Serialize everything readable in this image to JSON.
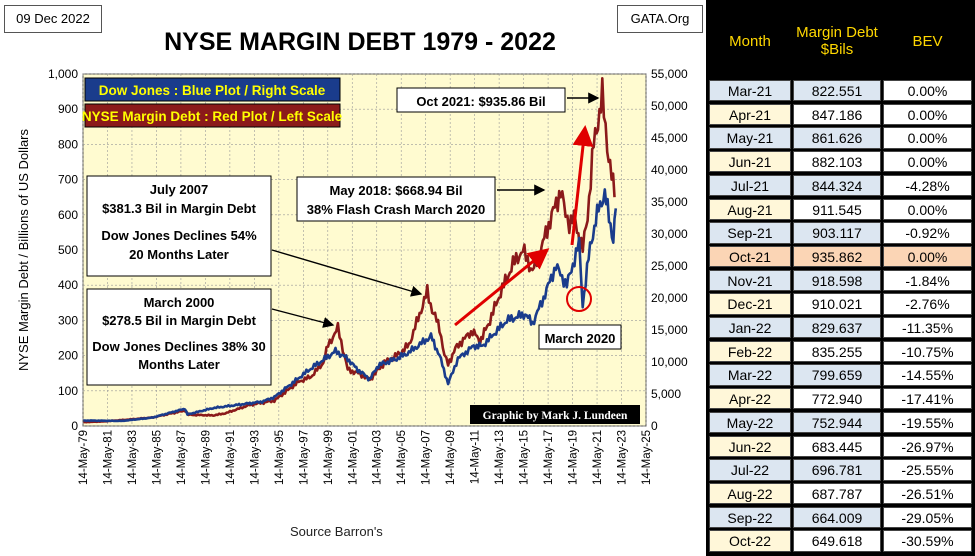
{
  "header": {
    "date": "09 Dec 2022",
    "source_tag": "GATA.Org",
    "footer": "Source Barron's"
  },
  "chart_data": {
    "type": "line",
    "title": "NYSE MARGIN DEBT 1979 - 2022",
    "ylabel": "NYSE Margin Debt  /  Billions of US Dollars",
    "xlabel": "Source Barron's",
    "ylim": [
      0,
      1000
    ],
    "y2lim": [
      0,
      55000
    ],
    "yticks": [
      "0",
      "100",
      "200",
      "300",
      "400",
      "500",
      "600",
      "700",
      "800",
      "900",
      "1,000"
    ],
    "y2ticks": [
      "0",
      "5,000",
      "10,000",
      "15,000",
      "20,000",
      "25,000",
      "30,000",
      "35,000",
      "40,000",
      "45,000",
      "50,000",
      "55,000"
    ],
    "xticks": [
      "14-May-79",
      "14-May-81",
      "14-May-83",
      "14-May-85",
      "14-May-87",
      "14-May-89",
      "14-May-91",
      "14-May-93",
      "14-May-95",
      "14-May-97",
      "14-May-99",
      "14-May-01",
      "14-May-03",
      "14-May-05",
      "14-May-07",
      "14-May-09",
      "14-May-11",
      "14-May-13",
      "14-May-15",
      "14-May-17",
      "14-May-19",
      "14-May-21",
      "14-May-23",
      "14-May-25"
    ],
    "legend": [
      {
        "label": "Dow Jones : Blue Plot / Right Scale",
        "color": "#1a3c8c",
        "text_color": "#ffff00"
      },
      {
        "label": "NYSE Margin Debt : Red Plot / Left Scale",
        "color": "#8b1a1a",
        "text_color": "#ffff00"
      }
    ],
    "series": [
      {
        "name": "NYSE Margin Debt",
        "axis": "left",
        "color": "#8b1a1a",
        "points": [
          [
            1979.4,
            11
          ],
          [
            1981,
            13
          ],
          [
            1983,
            18
          ],
          [
            1985,
            24
          ],
          [
            1987.7,
            44
          ],
          [
            1988,
            32
          ],
          [
            1990,
            30
          ],
          [
            1991,
            36
          ],
          [
            1993,
            60
          ],
          [
            1995,
            72
          ],
          [
            1997,
            126
          ],
          [
            1998,
            140
          ],
          [
            1999,
            180
          ],
          [
            1999.4,
            230
          ],
          [
            2000.2,
            278
          ],
          [
            2000.6,
            220
          ],
          [
            2001,
            160
          ],
          [
            2002,
            148
          ],
          [
            2002.8,
            132
          ],
          [
            2003,
            140
          ],
          [
            2004,
            180
          ],
          [
            2005,
            200
          ],
          [
            2006,
            230
          ],
          [
            2006.5,
            280
          ],
          [
            2007.5,
            381
          ],
          [
            2007.9,
            330
          ],
          [
            2008.5,
            280
          ],
          [
            2008.9,
            200
          ],
          [
            2009.2,
            175
          ],
          [
            2009.8,
            220
          ],
          [
            2010.3,
            240
          ],
          [
            2011.2,
            270
          ],
          [
            2011.8,
            240
          ],
          [
            2012.5,
            290
          ],
          [
            2013.5,
            380
          ],
          [
            2014.5,
            460
          ],
          [
            2015.3,
            500
          ],
          [
            2016.1,
            440
          ],
          [
            2016.7,
            490
          ],
          [
            2017.3,
            560
          ],
          [
            2018.4,
            669
          ],
          [
            2018.8,
            600
          ],
          [
            2019.1,
            580
          ],
          [
            2019.5,
            590
          ],
          [
            2020.2,
            500
          ],
          [
            2020.6,
            600
          ],
          [
            2021.1,
            800
          ],
          [
            2021.8,
            936
          ],
          [
            2022.2,
            800
          ],
          [
            2022.8,
            650
          ]
        ]
      },
      {
        "name": "Dow Jones",
        "axis": "right",
        "color": "#1a3c8c",
        "points": [
          [
            1979.4,
            850
          ],
          [
            1982.6,
            800
          ],
          [
            1985,
            1300
          ],
          [
            1987.7,
            2700
          ],
          [
            1987.9,
            1800
          ],
          [
            1990,
            2800
          ],
          [
            1992,
            3300
          ],
          [
            1994,
            3800
          ],
          [
            1995,
            4500
          ],
          [
            1996,
            6000
          ],
          [
            1998,
            9000
          ],
          [
            1999.5,
            11000
          ],
          [
            2000,
            11700
          ],
          [
            2001,
            10500
          ],
          [
            2001.7,
            9000
          ],
          [
            2002.8,
            7300
          ],
          [
            2003.5,
            9500
          ],
          [
            2005,
            10500
          ],
          [
            2006,
            11500
          ],
          [
            2007.8,
            14000
          ],
          [
            2008.5,
            11000
          ],
          [
            2009.2,
            6600
          ],
          [
            2010,
            10500
          ],
          [
            2011.3,
            12500
          ],
          [
            2012,
            12500
          ],
          [
            2013,
            14500
          ],
          [
            2014,
            16500
          ],
          [
            2015.5,
            17500
          ],
          [
            2016.1,
            16000
          ],
          [
            2017,
            20000
          ],
          [
            2018,
            25000
          ],
          [
            2018.9,
            22000
          ],
          [
            2019.9,
            28500
          ],
          [
            2020.2,
            19000
          ],
          [
            2020.8,
            28000
          ],
          [
            2021.5,
            34000
          ],
          [
            2022,
            36300
          ],
          [
            2022.7,
            29000
          ],
          [
            2022.9,
            34000
          ]
        ]
      }
    ],
    "annotations": [
      {
        "text": "Oct 2021: $935.86 Bil",
        "lines": [
          "Oct 2021: $935.86 Bil"
        ]
      },
      {
        "text": "May 2018: $668.94 Bil 38% Flash Crash March 2020",
        "lines": [
          "May 2018: $668.94 Bil",
          "38% Flash Crash March 2020"
        ]
      },
      {
        "text": "July 2007 $381.3 Bil in Margin Debt Dow Jones Declines 54% 20 Months Later",
        "lines": [
          "July 2007",
          "$381.3 Bil in Margin Debt",
          "",
          "Dow Jones Declines 54%",
          "20 Months Later"
        ]
      },
      {
        "text": "March 2000 $278.5 Bil in Margin Debt Dow Jones Declines 38% 30 Months Later",
        "lines": [
          "March 2000",
          "$278.5 Bil in Margin Debt",
          "",
          "Dow Jones Declines 38% 30",
          "Months Later"
        ]
      },
      {
        "text": "March 2020",
        "lines": [
          "March 2020"
        ]
      },
      {
        "text": "Graphic by Mark J. Lundeen",
        "lines": [
          "Graphic by Mark J. Lundeen"
        ]
      }
    ]
  },
  "table": {
    "headers": [
      "Month",
      "Margin Debt $Bils",
      "BEV"
    ],
    "rows": [
      {
        "month": "Mar-21",
        "debt": "822.551",
        "bev": "0.00%"
      },
      {
        "month": "Apr-21",
        "debt": "847.186",
        "bev": "0.00%"
      },
      {
        "month": "May-21",
        "debt": "861.626",
        "bev": "0.00%"
      },
      {
        "month": "Jun-21",
        "debt": "882.103",
        "bev": "0.00%"
      },
      {
        "month": "Jul-21",
        "debt": "844.324",
        "bev": "-4.28%"
      },
      {
        "month": "Aug-21",
        "debt": "911.545",
        "bev": "0.00%"
      },
      {
        "month": "Sep-21",
        "debt": "903.117",
        "bev": "-0.92%"
      },
      {
        "month": "Oct-21",
        "debt": "935.862",
        "bev": "0.00%",
        "highlight": true
      },
      {
        "month": "Nov-21",
        "debt": "918.598",
        "bev": "-1.84%"
      },
      {
        "month": "Dec-21",
        "debt": "910.021",
        "bev": "-2.76%"
      },
      {
        "month": "Jan-22",
        "debt": "829.637",
        "bev": "-11.35%"
      },
      {
        "month": "Feb-22",
        "debt": "835.255",
        "bev": "-10.75%"
      },
      {
        "month": "Mar-22",
        "debt": "799.659",
        "bev": "-14.55%"
      },
      {
        "month": "Apr-22",
        "debt": "772.940",
        "bev": "-17.41%"
      },
      {
        "month": "May-22",
        "debt": "752.944",
        "bev": "-19.55%"
      },
      {
        "month": "Jun-22",
        "debt": "683.445",
        "bev": "-26.97%"
      },
      {
        "month": "Jul-22",
        "debt": "696.781",
        "bev": "-25.55%"
      },
      {
        "month": "Aug-22",
        "debt": "687.787",
        "bev": "-26.51%"
      },
      {
        "month": "Sep-22",
        "debt": "664.009",
        "bev": "-29.05%"
      },
      {
        "month": "Oct-22",
        "debt": "649.618",
        "bev": "-30.59%"
      }
    ]
  }
}
